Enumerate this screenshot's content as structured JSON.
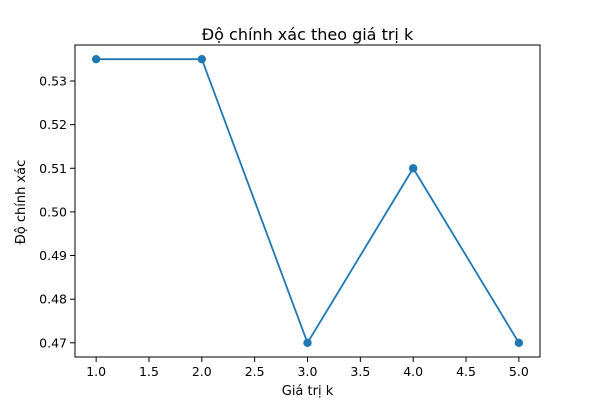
{
  "chart_data": {
    "type": "line",
    "title": "Độ chính xác theo giá trị k",
    "xlabel": "Giá trị k",
    "ylabel": "Độ chính xác",
    "x": [
      1.0,
      2.0,
      3.0,
      4.0,
      5.0
    ],
    "series": [
      {
        "values": [
          0.535,
          0.535,
          0.47,
          0.51,
          0.47
        ],
        "color": "#1f77b4",
        "marker": "circle"
      }
    ],
    "xlim": [
      0.8,
      5.2
    ],
    "ylim": [
      0.46675,
      0.53825
    ],
    "x_ticks": [
      1.0,
      1.5,
      2.0,
      2.5,
      3.0,
      3.5,
      4.0,
      4.5,
      5.0
    ],
    "x_tick_labels": [
      "1.0",
      "1.5",
      "2.0",
      "2.5",
      "3.0",
      "3.5",
      "4.0",
      "4.5",
      "5.0"
    ],
    "y_ticks": [
      0.47,
      0.48,
      0.49,
      0.5,
      0.51,
      0.52,
      0.53
    ],
    "y_tick_labels": [
      "0.47",
      "0.48",
      "0.49",
      "0.50",
      "0.51",
      "0.52",
      "0.53"
    ],
    "grid": false,
    "legend": "none"
  }
}
